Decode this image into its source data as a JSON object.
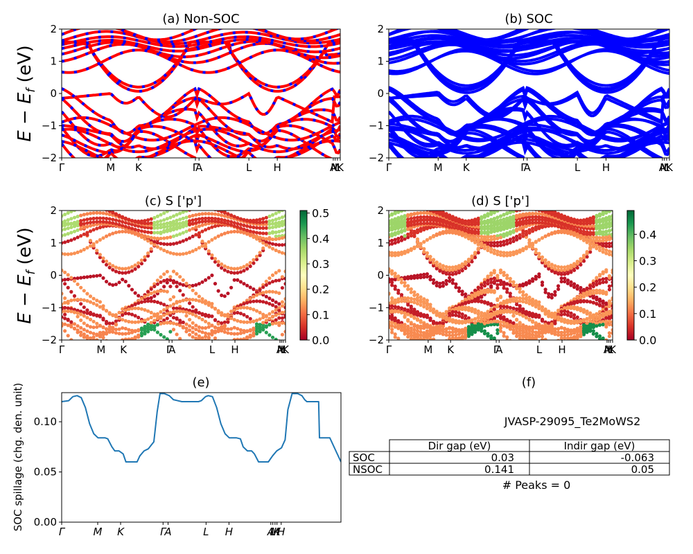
{
  "figure": {
    "material_id": "JVASP-29095_Te2MoWS2",
    "peaks_text": "# Peaks = 0"
  },
  "colors": {
    "nonsoc_line": "#ff0000",
    "nonsoc_dash": "#0000ff",
    "soc_line": "#0000ff",
    "spillage_line": "#1f77b4",
    "colormap": [
      "#a50026",
      "#d73027",
      "#f46d43",
      "#fdae61",
      "#fee08b",
      "#ffffbf",
      "#d9ef8b",
      "#a6d96a",
      "#66bd63",
      "#1a9850",
      "#006837"
    ]
  },
  "chart_data": [
    {
      "id": "a",
      "type": "line",
      "title": "(a) Non-SOC",
      "ylabel": "E − E_f (eV)",
      "ylabel_main": "E − E",
      "ylabel_sub": "f",
      "ylabel_unit": " (eV)",
      "ylim": [
        -2,
        2
      ],
      "yticks": [
        -2,
        -1,
        0,
        1,
        2
      ],
      "ytick_labels": [
        "−2",
        "−1",
        "0",
        "1",
        "2"
      ],
      "xticks": [
        0,
        0.176,
        0.276,
        0.48,
        0.493,
        0.672,
        0.774,
        0.975,
        0.982,
        0.99,
        1.0
      ],
      "xtick_labels": [
        "Γ",
        "M",
        "K",
        "Γ",
        "A",
        "L",
        "H",
        "A",
        "M",
        "L",
        "K"
      ],
      "legend": "none"
    },
    {
      "id": "b",
      "type": "line",
      "title": "(b) SOC",
      "ylim": [
        -2,
        2
      ],
      "yticks": [
        -2,
        -1,
        0,
        1,
        2
      ],
      "ytick_labels": [
        "−2",
        "−1",
        "0",
        "1",
        "2"
      ],
      "xticks": [
        0,
        0.176,
        0.276,
        0.48,
        0.493,
        0.672,
        0.774,
        0.975,
        0.982,
        0.99,
        1.0
      ],
      "xtick_labels": [
        "Γ",
        "M",
        "K",
        "Γ",
        "A",
        "L",
        "H",
        "A",
        "M",
        "L",
        "K"
      ],
      "legend": "none"
    },
    {
      "id": "c",
      "type": "scatter",
      "title": "(c)  S ['p']",
      "ylabel": "E − E_f (eV)",
      "ylabel_main": "E − E",
      "ylabel_sub": "f",
      "ylabel_unit": " (eV)",
      "ylim": [
        -2,
        2
      ],
      "yticks": [
        -2,
        -1,
        0,
        1,
        2
      ],
      "ytick_labels": [
        "−2",
        "−1",
        "0",
        "1",
        "2"
      ],
      "xticks": [
        0,
        0.176,
        0.276,
        0.48,
        0.493,
        0.672,
        0.774,
        0.975,
        0.982,
        0.99,
        1.0
      ],
      "xtick_labels": [
        "Γ",
        "M",
        "K",
        "Γ",
        "A",
        "L",
        "H",
        "A",
        "M",
        "L",
        "K"
      ],
      "colorbar": {
        "range": [
          0.0,
          0.51
        ],
        "ticks": [
          0.0,
          0.1,
          0.2,
          0.3,
          0.4,
          0.5
        ],
        "tick_labels": [
          "0.0",
          "0.1",
          "0.2",
          "0.3",
          "0.4",
          "0.5"
        ]
      }
    },
    {
      "id": "d",
      "type": "scatter",
      "title": "(d) S ['p']",
      "ylim": [
        -2,
        2
      ],
      "yticks": [
        -2,
        -1,
        0,
        1,
        2
      ],
      "ytick_labels": [
        "−2",
        "−1",
        "0",
        "1",
        "2"
      ],
      "xticks": [
        0,
        0.176,
        0.276,
        0.48,
        0.493,
        0.672,
        0.774,
        0.975,
        0.982,
        0.99,
        1.0
      ],
      "xtick_labels": [
        "Γ",
        "M",
        "K",
        "Γ",
        "A",
        "L",
        "H",
        "A",
        "M",
        "L",
        "K"
      ],
      "colorbar": {
        "range": [
          0.0,
          0.49
        ],
        "ticks": [
          0.0,
          0.1,
          0.2,
          0.3,
          0.4
        ],
        "tick_labels": [
          "0.0",
          "0.1",
          "0.2",
          "0.3",
          "0.4"
        ]
      }
    },
    {
      "id": "e",
      "type": "line",
      "title": "(e)",
      "ylabel": "SOC spillage (chg. den. unit)",
      "ylim": [
        0,
        0.129
      ],
      "yticks": [
        0.0,
        0.05,
        0.1
      ],
      "ytick_labels": [
        "0.00",
        "0.05",
        "0.10"
      ],
      "xlim": [
        0,
        1
      ],
      "xticks": [
        0,
        0.129,
        0.211,
        0.363,
        0.381,
        0.517,
        0.599,
        0.749,
        0.756,
        0.764,
        0.771,
        0.786
      ],
      "xtick_labels": [
        "Γ",
        "M",
        "K",
        "Γ",
        "A",
        "L",
        "H",
        "A",
        "L",
        "M",
        "K",
        "H"
      ],
      "x": [
        0,
        0.025,
        0.04,
        0.055,
        0.07,
        0.085,
        0.1,
        0.115,
        0.13,
        0.155,
        0.165,
        0.18,
        0.19,
        0.205,
        0.22,
        0.23,
        0.245,
        0.27,
        0.28,
        0.295,
        0.31,
        0.33,
        0.342,
        0.352,
        0.368,
        0.385,
        0.4,
        0.43,
        0.46,
        0.49,
        0.5,
        0.515,
        0.525,
        0.54,
        0.555,
        0.57,
        0.585,
        0.6,
        0.625,
        0.64,
        0.65,
        0.665,
        0.68,
        0.69,
        0.705,
        0.73,
        0.74,
        0.755,
        0.77,
        0.787,
        0.8,
        0.81,
        0.825,
        0.845,
        0.86,
        0.87,
        0.878,
        0.88,
        0.92,
        0.923,
        0.96,
        1.0
      ],
      "y": [
        0.12,
        0.121,
        0.125,
        0.126,
        0.124,
        0.114,
        0.098,
        0.088,
        0.084,
        0.084,
        0.083,
        0.075,
        0.071,
        0.071,
        0.068,
        0.06,
        0.06,
        0.06,
        0.066,
        0.071,
        0.073,
        0.08,
        0.11,
        0.128,
        0.128,
        0.126,
        0.122,
        0.12,
        0.12,
        0.12,
        0.121,
        0.125,
        0.126,
        0.125,
        0.114,
        0.098,
        0.088,
        0.084,
        0.084,
        0.083,
        0.075,
        0.071,
        0.071,
        0.068,
        0.06,
        0.06,
        0.06,
        0.066,
        0.071,
        0.074,
        0.082,
        0.112,
        0.128,
        0.128,
        0.126,
        0.122,
        0.12,
        0.12,
        0.12,
        0.084,
        0.084,
        0.06
      ],
      "legend": "none"
    },
    {
      "id": "f",
      "type": "table",
      "title": "(f)",
      "columns": [
        "",
        "Dir gap (eV)",
        "Indir gap (eV)"
      ],
      "rows": [
        {
          "label": "SOC",
          "dir_gap": "0.03",
          "indir_gap": "-0.063"
        },
        {
          "label": "NSOC",
          "dir_gap": "0.141",
          "indir_gap": "0.05"
        }
      ]
    }
  ]
}
